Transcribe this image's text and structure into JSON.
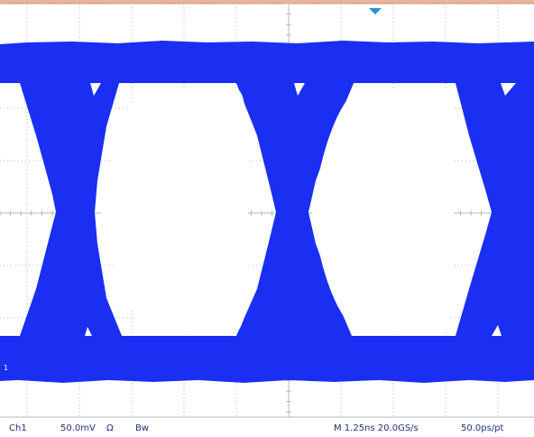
{
  "colors": {
    "trace": "#1a2ff2",
    "graticule": "#b8b8b8",
    "top_bar": "#e8b49a",
    "trigger_marker": "#2b8fd6",
    "readout_text": "#1f2f7a",
    "background": "#ffffff"
  },
  "channel": {
    "marker_label": "1",
    "name": "Ch1",
    "scale": "50.0mV",
    "termination_icon": "ohm-icon",
    "termination_symbol": "Ω",
    "coupling_icon": "bandwidth-limit-icon",
    "coupling_symbol": "Bw"
  },
  "timebase": {
    "readout": "M 1.25ns 20.0GS/s",
    "resolution": "50.0ps/pt"
  },
  "display": {
    "mode": "eye diagram",
    "trigger_marker_icon": "trigger-position-icon"
  }
}
